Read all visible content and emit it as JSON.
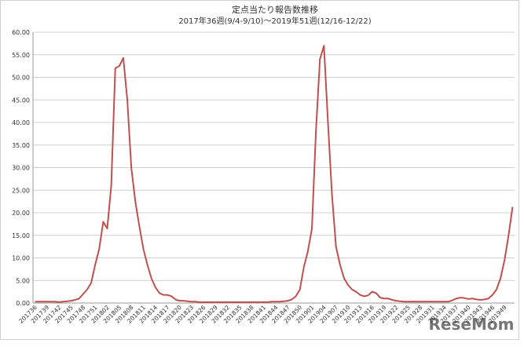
{
  "chart_data": {
    "type": "line",
    "title": "定点当たり報告数推移",
    "subtitle": "2017年36週(9/4-9/10)～2019年51週(12/16-12/22)",
    "categories": [
      "201736",
      null,
      null,
      "201739",
      null,
      null,
      "201742",
      null,
      null,
      "201745",
      null,
      null,
      "201748",
      null,
      null,
      "201751",
      null,
      null,
      "201802",
      null,
      null,
      "201805",
      null,
      null,
      "201808",
      null,
      null,
      "201811",
      null,
      null,
      "201814",
      null,
      null,
      "201817",
      null,
      null,
      "201820",
      null,
      null,
      "201823",
      null,
      null,
      "201826",
      null,
      null,
      "201829",
      null,
      null,
      "201832",
      null,
      null,
      "201835",
      null,
      null,
      "201838",
      null,
      null,
      "201841",
      null,
      null,
      "201844",
      null,
      null,
      "201847",
      null,
      null,
      "201850",
      null,
      null,
      "201901",
      null,
      null,
      "201904",
      null,
      null,
      "201907",
      null,
      null,
      "201910",
      null,
      null,
      "201913",
      null,
      null,
      "201916",
      null,
      null,
      "201919",
      null,
      null,
      "201922",
      null,
      null,
      "201925",
      null,
      null,
      "201928",
      null,
      null,
      "201931",
      null,
      null,
      "201934",
      null,
      null,
      "201937",
      null,
      null,
      "201940",
      null,
      null,
      "201943",
      null,
      null,
      "201946",
      null,
      null,
      "201949",
      null,
      null
    ],
    "values": [
      0.3,
      0.3,
      0.3,
      0.3,
      0.3,
      0.3,
      0.2,
      0.3,
      0.4,
      0.5,
      0.7,
      1.0,
      2.0,
      3.0,
      4.5,
      8.5,
      12,
      18,
      16.5,
      26,
      52,
      52.5,
      54.3,
      45,
      30,
      22.5,
      17,
      12,
      8.5,
      5.5,
      3.5,
      2.2,
      1.8,
      1.8,
      1.5,
      0.8,
      0.5,
      0.5,
      0.4,
      0.3,
      0.3,
      0.2,
      0.2,
      0.2,
      0.2,
      0.2,
      0.2,
      0.2,
      0.2,
      0.2,
      0.2,
      0.2,
      0.2,
      0.2,
      0.2,
      0.2,
      0.2,
      0.2,
      0.2,
      0.3,
      0.3,
      0.3,
      0.4,
      0.5,
      0.8,
      1.5,
      3,
      8,
      11.5,
      16.5,
      38,
      54,
      57,
      40,
      24,
      12.5,
      8.5,
      5.5,
      4,
      3,
      2.5,
      1.8,
      1.5,
      1.7,
      2.5,
      2.2,
      1.2,
      1.0,
      1.0,
      0.7,
      0.5,
      0.4,
      0.3,
      0.3,
      0.3,
      0.3,
      0.3,
      0.3,
      0.3,
      0.3,
      0.3,
      0.3,
      0.3,
      0.3,
      0.6,
      1.0,
      1.2,
      1.1,
      0.9,
      1.0,
      0.8,
      0.7,
      0.8,
      1.0,
      1.8,
      3.0,
      5.5,
      9.5,
      15,
      21.3
    ],
    "color": "#c0504d",
    "ylim": [
      0,
      60
    ],
    "yticks": [
      {
        "value": 0,
        "label": "0.00"
      },
      {
        "value": 5,
        "label": "5.00"
      },
      {
        "value": 10,
        "label": "10.00"
      },
      {
        "value": 15,
        "label": "15.00"
      },
      {
        "value": 20,
        "label": "20.00"
      },
      {
        "value": 25,
        "label": "25.00"
      },
      {
        "value": 30,
        "label": "30.00"
      },
      {
        "value": 35,
        "label": "35.00"
      },
      {
        "value": 40,
        "label": "40.00"
      },
      {
        "value": 45,
        "label": "45.00"
      },
      {
        "value": 50,
        "label": "50.00"
      },
      {
        "value": 55,
        "label": "55.00"
      },
      {
        "value": 60,
        "label": "60.00"
      }
    ],
    "grid": true,
    "watermark": "ReseMom"
  }
}
